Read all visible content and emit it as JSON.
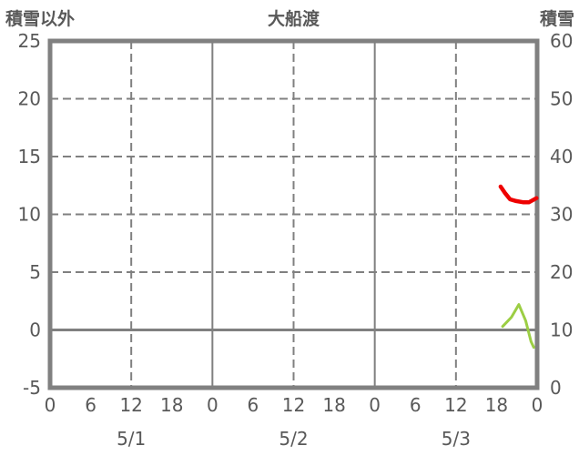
{
  "header": {
    "left_axis_title": "積雪以外",
    "chart_title": "大船渡",
    "right_axis_title": "積雪"
  },
  "colors": {
    "frame": "#808080",
    "grid": "#808080",
    "text": "#595959",
    "red_series": "#ee0000",
    "green_series": "#9cce44",
    "background": "#ffffff"
  },
  "chart_data": {
    "type": "line",
    "title": "大船渡",
    "left_axis": {
      "label": "積雪以外",
      "min": -5,
      "max": 25,
      "ticks": [
        25,
        20,
        15,
        10,
        5,
        0,
        -5
      ],
      "dashed_gridline_values": [
        20,
        15,
        10,
        5
      ],
      "solid_gridline_values": [
        0
      ]
    },
    "right_axis": {
      "label": "積雪",
      "min": 0,
      "max": 60,
      "ticks": [
        60,
        50,
        40,
        30,
        20,
        10,
        0
      ]
    },
    "x_axis": {
      "min_hour": 0,
      "max_hour": 72,
      "hour_ticks": [
        {
          "hour": 0,
          "label": "0"
        },
        {
          "hour": 6,
          "label": "6"
        },
        {
          "hour": 12,
          "label": "12"
        },
        {
          "hour": 18,
          "label": "18"
        },
        {
          "hour": 24,
          "label": "0"
        },
        {
          "hour": 30,
          "label": "6"
        },
        {
          "hour": 36,
          "label": "12"
        },
        {
          "hour": 42,
          "label": "18"
        },
        {
          "hour": 48,
          "label": "0"
        },
        {
          "hour": 54,
          "label": "6"
        },
        {
          "hour": 60,
          "label": "12"
        },
        {
          "hour": 66,
          "label": "18"
        },
        {
          "hour": 72,
          "label": "0"
        }
      ],
      "date_labels": [
        {
          "hour": 12,
          "label": "5/1"
        },
        {
          "hour": 36,
          "label": "5/2"
        },
        {
          "hour": 60,
          "label": "5/3"
        }
      ],
      "dashed_gridline_hours": [
        12,
        36,
        60
      ],
      "solid_gridline_hours": [
        24,
        48
      ]
    },
    "series": [
      {
        "name": "red-line",
        "color": "#ee0000",
        "stroke_width": 4.5,
        "axis": "left",
        "points": [
          [
            66.6,
            12.4
          ],
          [
            67.3,
            11.8
          ],
          [
            68.0,
            11.3
          ],
          [
            68.9,
            11.15
          ],
          [
            69.9,
            11.05
          ],
          [
            70.8,
            11.05
          ],
          [
            71.9,
            11.4
          ]
        ]
      },
      {
        "name": "green-line",
        "color": "#9cce44",
        "stroke_width": 3,
        "axis": "left",
        "points": [
          [
            66.9,
            0.3
          ],
          [
            68.2,
            1.1
          ],
          [
            69.3,
            2.2
          ],
          [
            70.3,
            0.8
          ],
          [
            71.1,
            -1.0
          ],
          [
            71.5,
            -1.5
          ]
        ]
      }
    ],
    "legend": null,
    "grid": true
  }
}
